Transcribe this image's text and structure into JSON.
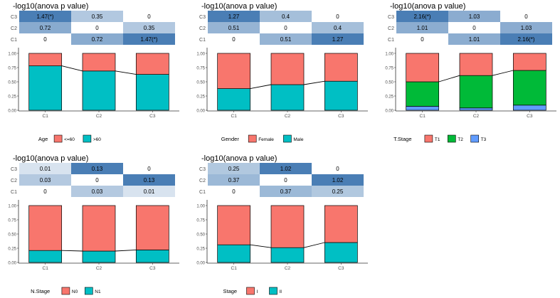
{
  "title_prefix": "-log10(anova p value)",
  "colors": {
    "low": "#ffffff",
    "high": "#4a7eb5",
    "outline": "#000000",
    "axis": "#333333",
    "tick_text": "#4d4d4d"
  },
  "chart_data": [
    {
      "type": "heatmap+stacked-bar",
      "title": "-log10(anova p value)",
      "heatmap": {
        "rows": [
          "C3",
          "C2",
          "C1"
        ],
        "cols": [
          "C1",
          "C2",
          "C3"
        ],
        "values": [
          [
            1.47,
            0.35,
            0
          ],
          [
            0.72,
            0,
            0.35
          ],
          [
            0,
            0.72,
            1.47
          ]
        ],
        "labels": [
          [
            "1.47(*)",
            "0.35",
            "0"
          ],
          [
            "0.72",
            "0",
            "0.35"
          ],
          [
            "0",
            "0.72",
            "1.47(*)"
          ]
        ]
      },
      "bar": {
        "categories": [
          "C1",
          "C2",
          "C3"
        ],
        "yticks": [
          "0.00",
          "0.25",
          "0.50",
          "0.75",
          "1.00"
        ],
        "ylim": [
          0,
          1
        ],
        "series": [
          {
            "name": "<=60",
            "color": "#f8766d",
            "values": [
              0.22,
              0.31,
              0.37
            ]
          },
          {
            "name": ">60",
            "color": "#00bfc4",
            "values": [
              0.78,
              0.69,
              0.63
            ]
          }
        ]
      },
      "legend": {
        "title": "Age",
        "items": [
          "<=60",
          ">60"
        ]
      }
    },
    {
      "type": "heatmap+stacked-bar",
      "title": "-log10(anova p value)",
      "heatmap": {
        "rows": [
          "C3",
          "C2",
          "C1"
        ],
        "cols": [
          "C1",
          "C2",
          "C3"
        ],
        "values": [
          [
            1.27,
            0.4,
            0
          ],
          [
            0.51,
            0,
            0.4
          ],
          [
            0,
            0.51,
            1.27
          ]
        ],
        "labels": [
          [
            "1.27",
            "0.4",
            "0"
          ],
          [
            "0.51",
            "0",
            "0.4"
          ],
          [
            "0",
            "0.51",
            "1.27"
          ]
        ]
      },
      "bar": {
        "categories": [
          "C1",
          "C2",
          "C3"
        ],
        "yticks": [
          "0.00",
          "0.25",
          "0.50",
          "0.75",
          "1.00"
        ],
        "ylim": [
          0,
          1
        ],
        "series": [
          {
            "name": "Female",
            "color": "#f8766d",
            "values": [
              0.62,
              0.55,
              0.49
            ]
          },
          {
            "name": "Male",
            "color": "#00bfc4",
            "values": [
              0.38,
              0.45,
              0.51
            ]
          }
        ]
      },
      "legend": {
        "title": "Gender",
        "items": [
          "Female",
          "Male"
        ]
      }
    },
    {
      "type": "heatmap+stacked-bar",
      "title": "-log10(anova p value)",
      "heatmap": {
        "rows": [
          "C3",
          "C2",
          "C1"
        ],
        "cols": [
          "C1",
          "C2",
          "C3"
        ],
        "values": [
          [
            2.16,
            1.03,
            0
          ],
          [
            1.01,
            0,
            1.03
          ],
          [
            0,
            1.01,
            2.16
          ]
        ],
        "labels": [
          [
            "2.16(*)",
            "1.03",
            "0"
          ],
          [
            "1.01",
            "0",
            "1.03"
          ],
          [
            "0",
            "1.01",
            "2.16(*)"
          ]
        ]
      },
      "bar": {
        "categories": [
          "C1",
          "C2",
          "C3"
        ],
        "yticks": [
          "0.00",
          "0.25",
          "0.50",
          "0.75",
          "1.00"
        ],
        "ylim": [
          0,
          1
        ],
        "series": [
          {
            "name": "T1",
            "color": "#f8766d",
            "values": [
              0.5,
              0.39,
              0.3
            ]
          },
          {
            "name": "T2",
            "color": "#00ba38",
            "values": [
              0.43,
              0.57,
              0.61
            ]
          },
          {
            "name": "T3",
            "color": "#619cff",
            "values": [
              0.07,
              0.04,
              0.09
            ]
          }
        ]
      },
      "legend": {
        "title": "T.Stage",
        "items": [
          "T1",
          "T2",
          "T3"
        ]
      }
    },
    {
      "type": "heatmap+stacked-bar",
      "title": "-log10(anova p value)",
      "heatmap": {
        "rows": [
          "C3",
          "C2",
          "C1"
        ],
        "cols": [
          "C1",
          "C2",
          "C3"
        ],
        "values": [
          [
            0.01,
            0.13,
            0
          ],
          [
            0.03,
            0,
            0.13
          ],
          [
            0,
            0.03,
            0.01
          ]
        ],
        "labels": [
          [
            "0.01",
            "0.13",
            "0"
          ],
          [
            "0.03",
            "0",
            "0.13"
          ],
          [
            "0",
            "0.03",
            "0.01"
          ]
        ]
      },
      "bar": {
        "categories": [
          "C1",
          "C2",
          "C3"
        ],
        "yticks": [
          "0.00",
          "0.25",
          "0.50",
          "0.75",
          "1.00"
        ],
        "ylim": [
          0,
          1
        ],
        "series": [
          {
            "name": "N0",
            "color": "#f8766d",
            "values": [
              0.79,
              0.8,
              0.78
            ]
          },
          {
            "name": "N1",
            "color": "#00bfc4",
            "values": [
              0.21,
              0.2,
              0.22
            ]
          }
        ]
      },
      "legend": {
        "title": "N.Stage",
        "items": [
          "N0",
          "N1"
        ]
      }
    },
    {
      "type": "heatmap+stacked-bar",
      "title": "-log10(anova p value)",
      "heatmap": {
        "rows": [
          "C3",
          "C2",
          "C1"
        ],
        "cols": [
          "C1",
          "C2",
          "C3"
        ],
        "values": [
          [
            0.25,
            1.02,
            0
          ],
          [
            0.37,
            0,
            1.02
          ],
          [
            0,
            0.37,
            0.25
          ]
        ],
        "labels": [
          [
            "0.25",
            "1.02",
            "0"
          ],
          [
            "0.37",
            "0",
            "1.02"
          ],
          [
            "0",
            "0.37",
            "0.25"
          ]
        ]
      },
      "bar": {
        "categories": [
          "C1",
          "C2",
          "C3"
        ],
        "yticks": [
          "0.00",
          "0.25",
          "0.50",
          "0.75",
          "1.00"
        ],
        "ylim": [
          0,
          1
        ],
        "series": [
          {
            "name": "I",
            "color": "#f8766d",
            "values": [
              0.69,
              0.74,
              0.65
            ]
          },
          {
            "name": "II",
            "color": "#00bfc4",
            "values": [
              0.31,
              0.26,
              0.35
            ]
          }
        ]
      },
      "legend": {
        "title": "Stage",
        "items": [
          "I",
          "II"
        ]
      }
    }
  ]
}
